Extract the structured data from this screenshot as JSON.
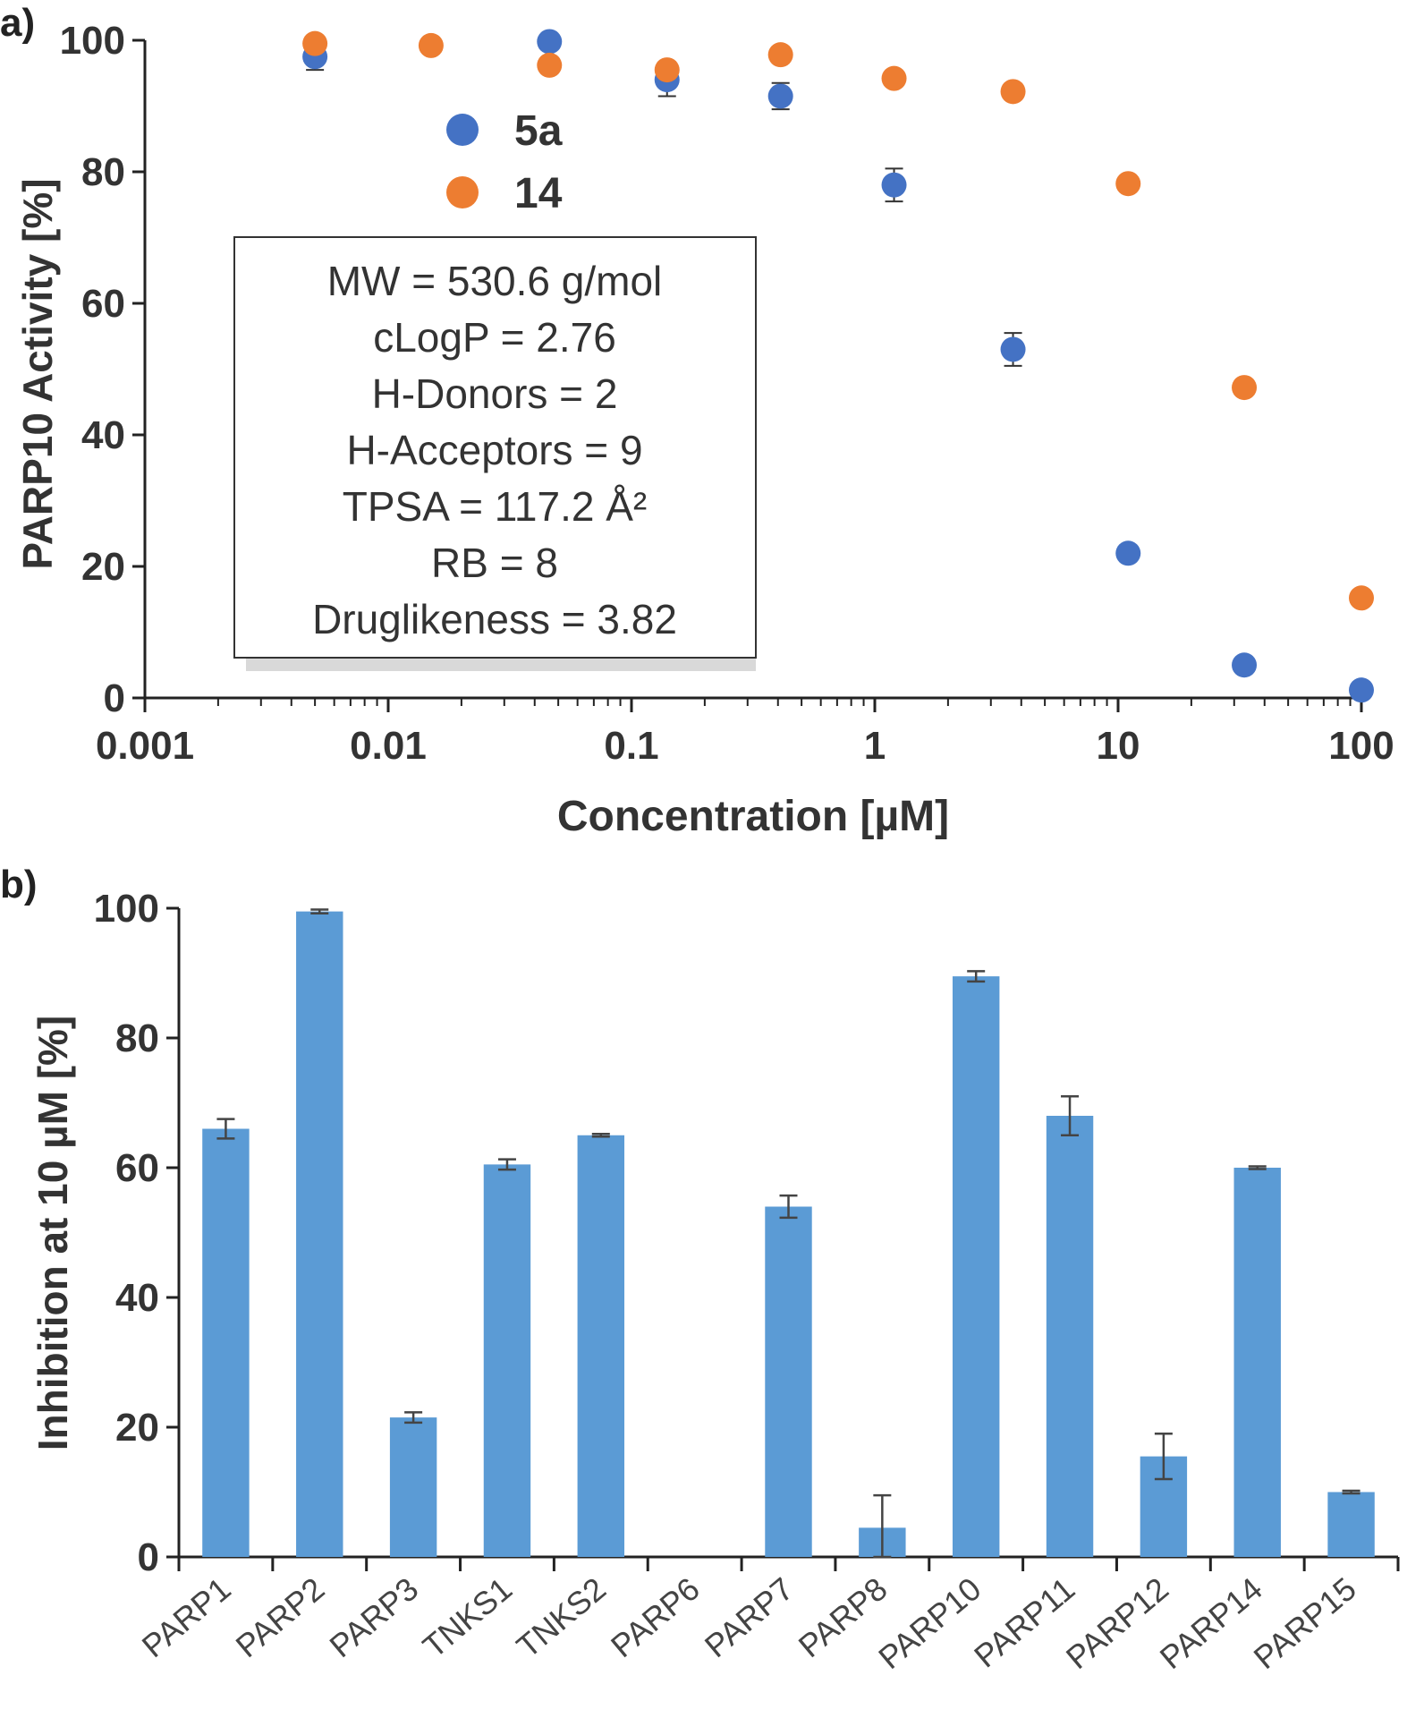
{
  "chart_data": [
    {
      "panel_label": "a)",
      "type": "scatter",
      "xscale": "log",
      "xlim": [
        0.001,
        100
      ],
      "ylim": [
        0,
        100
      ],
      "xlabel": "Concentration   [µM]",
      "ylabel": "PARP10 Activity [%]",
      "x_tick_labels": [
        "0.001",
        "0.01",
        "0.1",
        "1",
        "10",
        "100"
      ],
      "y_tick_labels": [
        "0",
        "20",
        "40",
        "60",
        "80",
        "100"
      ],
      "legend_position": "upper-left",
      "series": [
        {
          "name": "5a",
          "color": "#4472c4",
          "x": [
            0.005,
            0.046,
            0.14,
            0.41,
            1.2,
            3.7,
            11,
            33,
            100
          ],
          "y": [
            97.5,
            99.8,
            94,
            91.5,
            78,
            53,
            22,
            5,
            1.2
          ],
          "err": [
            2,
            0.5,
            2.5,
            2,
            2.5,
            2.5,
            0.5,
            0.5,
            0.5
          ]
        },
        {
          "name": "14",
          "color": "#ed7d31",
          "x": [
            0.005,
            0.015,
            0.046,
            0.14,
            0.41,
            1.2,
            3.7,
            11,
            33,
            100
          ],
          "y": [
            99.5,
            99.2,
            96.2,
            95.5,
            97.8,
            94.2,
            92.2,
            78.2,
            47.2,
            15.2
          ],
          "err": [
            0.5,
            0.5,
            0.5,
            1,
            0.5,
            0.5,
            0.5,
            0.5,
            0.5,
            0.5
          ]
        }
      ],
      "annotation_box": [
        "MW = 530.6 g/mol",
        "cLogP = 2.76",
        "H-Donors = 2",
        "H-Acceptors = 9",
        "TPSA = 117.2 Å²",
        "RB = 8",
        "Druglikeness = 3.82"
      ]
    },
    {
      "panel_label": "b)",
      "type": "bar",
      "ylabel": "Inhibition at 10 µM [%]",
      "ylim": [
        0,
        100
      ],
      "y_tick_labels": [
        "0",
        "20",
        "40",
        "60",
        "80",
        "100"
      ],
      "color": "#5b9bd5",
      "categories": [
        "PARP1",
        "PARP2",
        "PARP3",
        "TNKS1",
        "TNKS2",
        "PARP6",
        "PARP7",
        "PARP8",
        "PARP10",
        "PARP11",
        "PARP12",
        "PARP14",
        "PARP15"
      ],
      "values": [
        66,
        99.5,
        21.5,
        60.5,
        65,
        0,
        54,
        4.5,
        89.5,
        68,
        15.5,
        60,
        10
      ],
      "errors": [
        1.5,
        0.3,
        0.8,
        0.8,
        0.2,
        0,
        1.7,
        5,
        0.8,
        3,
        3.5,
        0.2,
        0.2
      ]
    }
  ]
}
